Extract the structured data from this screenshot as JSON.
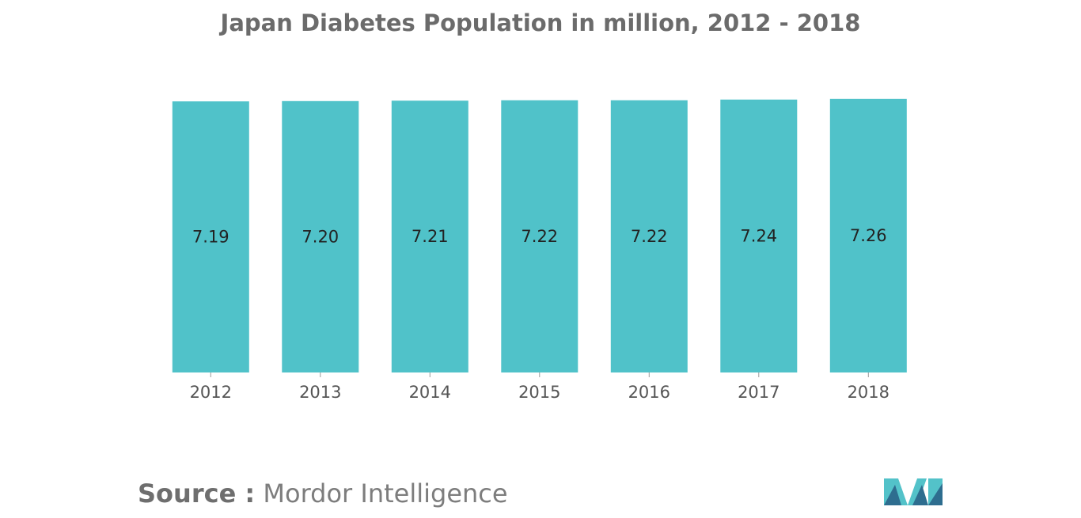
{
  "chart_data": {
    "type": "bar",
    "title": "Japan Diabetes Population in million, 2012 - 2018",
    "categories": [
      "2012",
      "2013",
      "2014",
      "2015",
      "2016",
      "2017",
      "2018"
    ],
    "values": [
      7.19,
      7.2,
      7.21,
      7.22,
      7.22,
      7.24,
      7.26
    ],
    "value_labels": [
      "7.19",
      "7.20",
      "7.21",
      "7.22",
      "7.22",
      "7.24",
      "7.26"
    ],
    "xlabel": "",
    "ylabel": "",
    "ylim": [
      0,
      7.3
    ],
    "grid": false,
    "legend": "none",
    "bar_color": "#50c2c9"
  },
  "source": {
    "label": "Source :",
    "value": "Mordor Intelligence"
  },
  "logo": {
    "icon": "mordor-intelligence-logo",
    "colors": [
      "#2e6d8f",
      "#53c2c9"
    ]
  }
}
